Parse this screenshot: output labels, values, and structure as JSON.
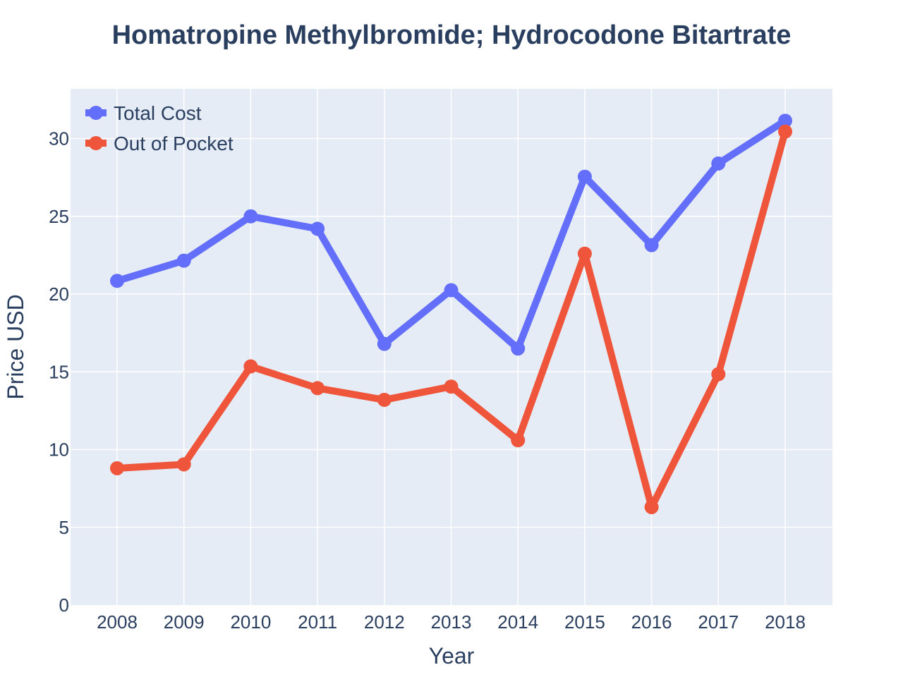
{
  "chart_data": {
    "type": "line",
    "title": "Homatropine Methylbromide; Hydrocodone Bitartrate",
    "xlabel": "Year",
    "ylabel": "Price USD",
    "x": [
      "2008",
      "2009",
      "2010",
      "2011",
      "2012",
      "2013",
      "2014",
      "2015",
      "2016",
      "2017",
      "2018"
    ],
    "ylim": [
      0,
      33.2
    ],
    "yticks": [
      0,
      5,
      10,
      15,
      20,
      25,
      30
    ],
    "grid": true,
    "legend_position": "top-left",
    "plot_background": "#e5ecf6",
    "series": [
      {
        "name": "Total Cost",
        "color": "#636efa",
        "values": [
          20.85,
          22.15,
          25.0,
          24.2,
          16.8,
          20.25,
          16.5,
          27.55,
          23.15,
          28.4,
          31.15
        ]
      },
      {
        "name": "Out of Pocket",
        "color": "#ef553b",
        "values": [
          8.8,
          9.05,
          15.35,
          13.95,
          13.2,
          14.05,
          10.6,
          22.6,
          6.3,
          14.85,
          30.45
        ]
      }
    ]
  }
}
